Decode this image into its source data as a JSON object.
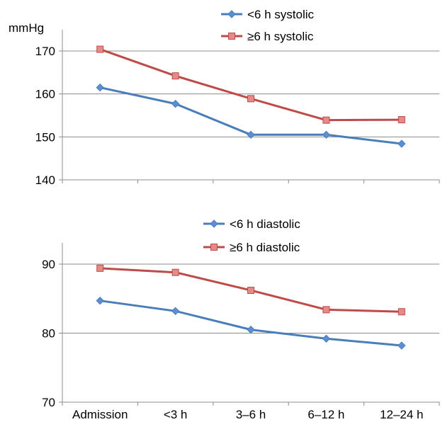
{
  "chart_data": [
    {
      "type": "line",
      "ylabel": "mmHg",
      "ylim": [
        140,
        170
      ],
      "yticks": [
        140,
        150,
        160,
        170
      ],
      "grid": true,
      "legend_position": "top-right",
      "categories": [
        "Admission",
        "<3 h",
        "3–6 h",
        "6–12 h",
        "12–24 h"
      ],
      "series": [
        {
          "name": "<6 h systolic",
          "values": [
            161.5,
            157.7,
            150.5,
            150.5,
            148.4
          ],
          "color": "#4a7ebb",
          "marker": "diamond"
        },
        {
          "name": "≥6 h systolic",
          "values": [
            170.4,
            164.2,
            158.9,
            153.9,
            154.0
          ],
          "color": "#be4b48",
          "marker": "square"
        }
      ]
    },
    {
      "type": "line",
      "ylabel": "",
      "ylim": [
        70,
        90
      ],
      "yticks": [
        70,
        80,
        90
      ],
      "grid": true,
      "legend_position": "top-right",
      "categories": [
        "Admission",
        "<3 h",
        "3–6 h",
        "6–12 h",
        "12–24 h"
      ],
      "series": [
        {
          "name": "<6 h diastolic",
          "values": [
            84.7,
            83.2,
            80.5,
            79.2,
            78.2
          ],
          "color": "#4a7ebb",
          "marker": "diamond"
        },
        {
          "name": "≥6 h diastolic",
          "values": [
            89.4,
            88.8,
            86.2,
            83.4,
            83.1
          ],
          "color": "#be4b48",
          "marker": "square"
        }
      ]
    }
  ]
}
